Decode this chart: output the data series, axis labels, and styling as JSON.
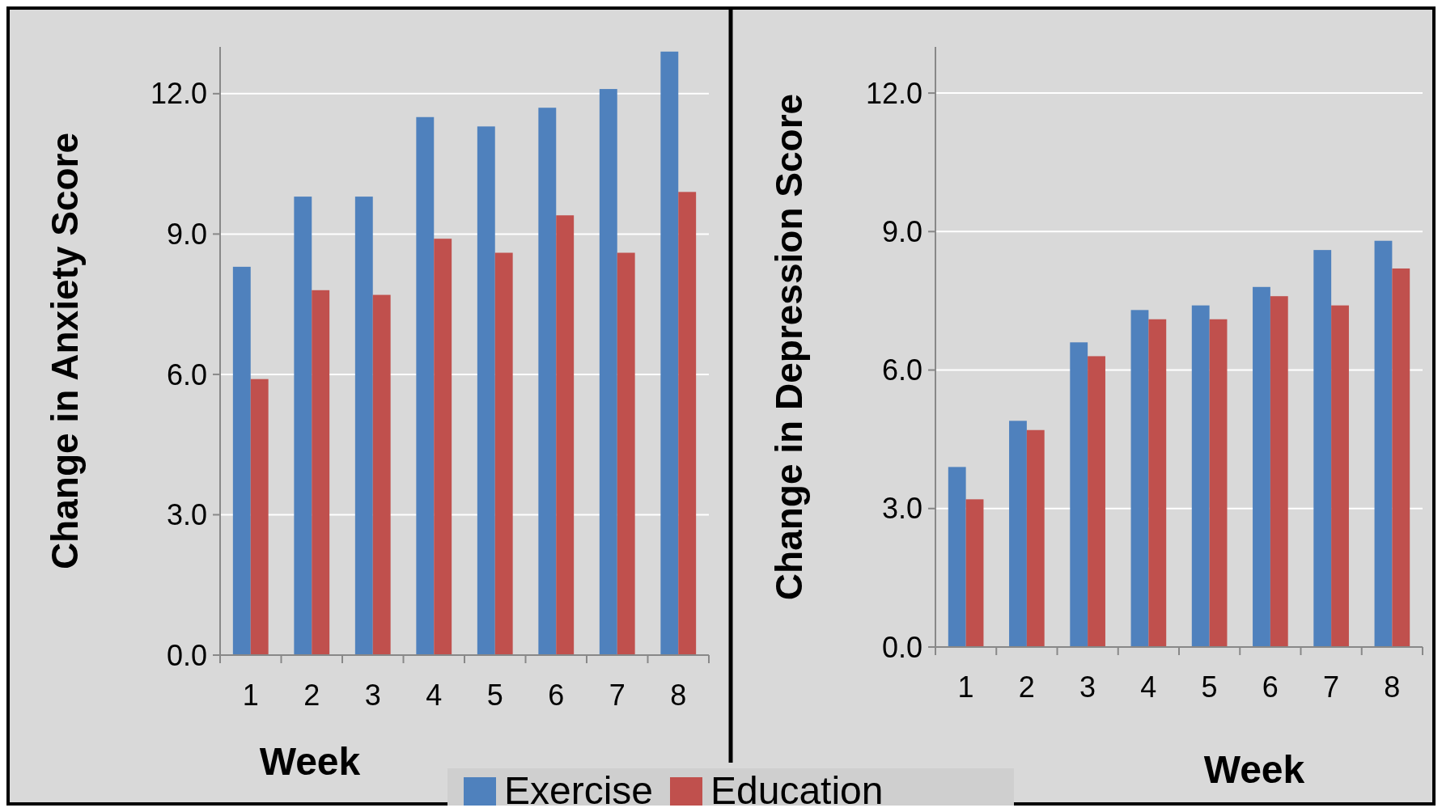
{
  "chart_data": [
    {
      "type": "bar",
      "xlabel": "Week",
      "ylabel": "Change in Anxiety Score",
      "categories": [
        "1",
        "2",
        "3",
        "4",
        "5",
        "6",
        "7",
        "8"
      ],
      "series": [
        {
          "name": "Exercise",
          "color": "#4f81bd",
          "values": [
            8.3,
            9.8,
            9.8,
            11.5,
            11.3,
            11.7,
            12.1,
            12.9
          ]
        },
        {
          "name": "Education",
          "color": "#c0504d",
          "values": [
            5.9,
            7.8,
            7.7,
            8.9,
            8.6,
            9.4,
            8.6,
            9.9
          ]
        }
      ],
      "ylim": [
        0,
        13
      ],
      "yticks": [
        {
          "value": 0,
          "label": "0.0"
        },
        {
          "value": 3,
          "label": "3.0"
        },
        {
          "value": 6,
          "label": "6.0"
        },
        {
          "value": 9,
          "label": "9.0"
        },
        {
          "value": 12,
          "label": "12.0"
        }
      ],
      "grid": "y",
      "legend": "bottom"
    },
    {
      "type": "bar",
      "xlabel": "Week",
      "ylabel": "Change in Depression Score",
      "categories": [
        "1",
        "2",
        "3",
        "4",
        "5",
        "6",
        "7",
        "8"
      ],
      "series": [
        {
          "color": "#4f81bd",
          "values": [
            3.9,
            4.9,
            6.6,
            7.3,
            7.4,
            7.8,
            8.6,
            8.8
          ]
        },
        {
          "color": "#c0504d",
          "values": [
            3.2,
            4.7,
            6.3,
            7.1,
            7.1,
            7.6,
            7.4,
            8.2
          ]
        }
      ],
      "ylim": [
        0,
        13
      ],
      "yticks": [
        {
          "value": 0,
          "label": "0.0"
        },
        {
          "value": 3,
          "label": "3.0"
        },
        {
          "value": 6,
          "label": "6.0"
        },
        {
          "value": 9,
          "label": "9.0"
        },
        {
          "value": 12,
          "label": "12.0"
        }
      ],
      "grid": "y"
    }
  ]
}
